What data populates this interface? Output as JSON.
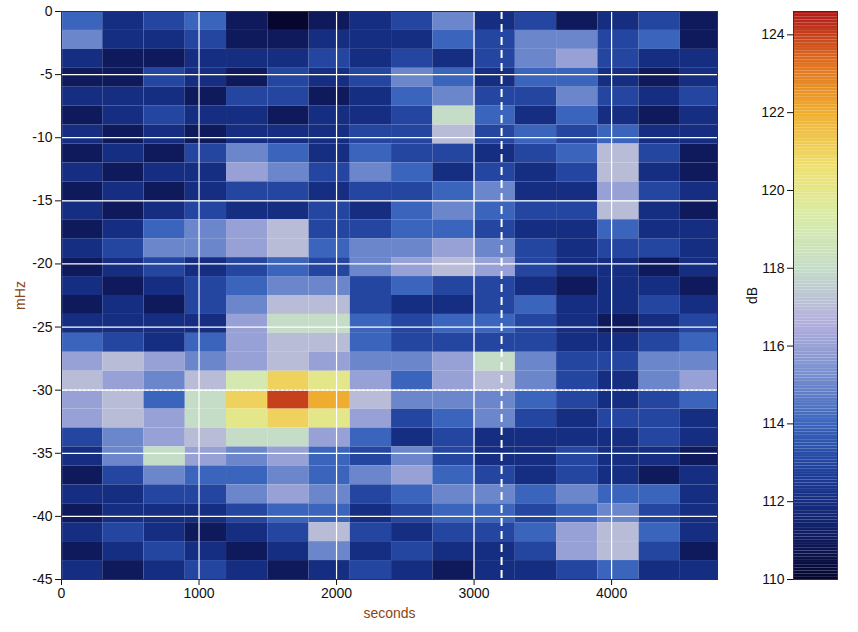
{
  "chart_data": {
    "type": "heatmap",
    "xlabel": "seconds",
    "ylabel": "mHz",
    "xlim": [
      0,
      4770
    ],
    "ylim": [
      -45,
      0
    ],
    "xticks": [
      0,
      1000,
      2000,
      3000,
      4000
    ],
    "yticks": [
      0,
      -5,
      -10,
      -15,
      -20,
      -25,
      -30,
      -35,
      -40,
      -45
    ],
    "grid": true,
    "vline_x": 3200,
    "hline_y": -30,
    "x_bins": [
      0,
      300,
      600,
      900,
      1200,
      1500,
      1800,
      2100,
      2400,
      2700,
      3000,
      3300,
      3600,
      3900,
      4200,
      4500,
      4800
    ],
    "y_bins": [
      0,
      -1.5,
      -3,
      -4.5,
      -6,
      -7.5,
      -9,
      -10.5,
      -12,
      -13.5,
      -15,
      -16.5,
      -18,
      -19.5,
      -21,
      -22.5,
      -24,
      -25.5,
      -27,
      -28.5,
      -30,
      -31.5,
      -33,
      -34.5,
      -36,
      -37.5,
      -39,
      -40.5,
      -42,
      -43.5,
      -45
    ],
    "cells": [
      [
        114,
        112,
        113,
        114,
        111,
        110,
        111,
        112,
        113,
        115,
        112,
        113,
        111,
        112,
        113,
        111
      ],
      [
        115,
        112,
        112,
        113,
        111,
        111,
        112,
        112,
        112,
        114,
        113,
        115,
        115,
        113,
        114,
        111
      ],
      [
        112,
        111,
        111,
        112,
        112,
        112,
        113,
        112,
        113,
        112,
        113,
        115,
        116,
        113,
        112,
        112
      ],
      [
        111,
        111,
        113,
        112,
        111,
        113,
        112,
        113,
        115,
        114,
        112,
        114,
        114,
        112,
        111,
        112
      ],
      [
        112,
        112,
        112,
        111,
        113,
        113,
        111,
        112,
        114,
        115,
        113,
        113,
        115,
        113,
        112,
        113
      ],
      [
        111,
        112,
        113,
        112,
        112,
        111,
        112,
        112,
        113,
        118,
        114,
        112,
        114,
        112,
        111,
        112
      ],
      [
        112,
        111,
        112,
        111,
        112,
        112,
        112,
        113,
        113,
        117,
        113,
        114,
        113,
        114,
        112,
        112
      ],
      [
        111,
        112,
        111,
        113,
        115,
        114,
        112,
        114,
        113,
        113,
        112,
        113,
        114,
        117,
        113,
        111
      ],
      [
        112,
        111,
        112,
        112,
        116,
        115,
        113,
        115,
        114,
        112,
        113,
        112,
        113,
        117,
        112,
        111
      ],
      [
        111,
        112,
        111,
        112,
        113,
        113,
        112,
        113,
        113,
        114,
        115,
        112,
        112,
        116,
        113,
        112
      ],
      [
        112,
        111,
        112,
        113,
        112,
        112,
        113,
        112,
        114,
        115,
        114,
        113,
        113,
        117,
        112,
        111
      ],
      [
        111,
        112,
        114,
        115,
        116,
        117,
        113,
        113,
        114,
        114,
        113,
        112,
        112,
        114,
        112,
        112
      ],
      [
        112,
        113,
        115,
        115,
        116,
        117,
        114,
        115,
        115,
        116,
        115,
        113,
        112,
        113,
        113,
        112
      ],
      [
        111,
        112,
        113,
        112,
        113,
        114,
        113,
        115,
        116,
        117,
        116,
        113,
        112,
        112,
        111,
        112
      ],
      [
        112,
        111,
        112,
        113,
        114,
        115,
        115,
        113,
        114,
        113,
        113,
        112,
        111,
        112,
        112,
        111
      ],
      [
        111,
        112,
        111,
        113,
        115,
        117,
        117,
        113,
        112,
        112,
        113,
        114,
        112,
        112,
        113,
        112
      ],
      [
        112,
        112,
        112,
        112,
        116,
        118,
        118,
        114,
        113,
        114,
        114,
        113,
        112,
        111,
        112,
        113
      ],
      [
        114,
        113,
        112,
        114,
        116,
        117,
        117,
        114,
        113,
        113,
        113,
        113,
        112,
        112,
        113,
        114
      ],
      [
        116,
        117,
        116,
        115,
        116,
        117,
        116,
        115,
        115,
        116,
        118,
        115,
        113,
        113,
        115,
        115
      ],
      [
        117,
        116,
        115,
        117,
        119,
        121,
        120,
        116,
        114,
        116,
        117,
        115,
        113,
        112,
        115,
        116
      ],
      [
        116,
        117,
        114,
        118,
        121,
        124,
        122,
        117,
        115,
        115,
        115,
        114,
        113,
        112,
        113,
        114
      ],
      [
        116,
        117,
        116,
        118,
        120,
        121,
        120,
        116,
        113,
        114,
        115,
        113,
        112,
        113,
        113,
        112
      ],
      [
        113,
        115,
        116,
        117,
        118,
        118,
        116,
        114,
        112,
        113,
        112,
        112,
        112,
        112,
        113,
        112
      ],
      [
        112,
        115,
        118,
        116,
        115,
        116,
        114,
        113,
        115,
        113,
        112,
        112,
        113,
        112,
        112,
        111
      ],
      [
        111,
        113,
        115,
        114,
        114,
        115,
        114,
        115,
        116,
        114,
        113,
        112,
        113,
        112,
        111,
        112
      ],
      [
        112,
        112,
        113,
        113,
        115,
        116,
        115,
        113,
        114,
        115,
        115,
        114,
        115,
        114,
        114,
        112
      ],
      [
        111,
        112,
        112,
        112,
        113,
        114,
        114,
        112,
        113,
        114,
        114,
        113,
        114,
        115,
        113,
        112
      ],
      [
        112,
        113,
        112,
        111,
        112,
        113,
        117,
        113,
        112,
        113,
        113,
        114,
        116,
        117,
        114,
        112
      ],
      [
        111,
        112,
        113,
        112,
        111,
        112,
        115,
        112,
        113,
        112,
        112,
        113,
        116,
        117,
        113,
        111
      ],
      [
        112,
        111,
        112,
        113,
        112,
        111,
        112,
        113,
        112,
        111,
        112,
        112,
        113,
        114,
        112,
        112
      ]
    ],
    "colorbar": {
      "label": "dB",
      "range": [
        110,
        124.6
      ],
      "ticks": [
        110,
        112,
        114,
        116,
        118,
        120,
        122,
        124
      ],
      "colors": [
        "#06062e",
        "#10206a",
        "#1c3c98",
        "#3a64bc",
        "#7a90d0",
        "#b4b0dc",
        "#c4dcc8",
        "#d8eca8",
        "#eee070",
        "#f0b030",
        "#e07020",
        "#b01818"
      ]
    }
  }
}
